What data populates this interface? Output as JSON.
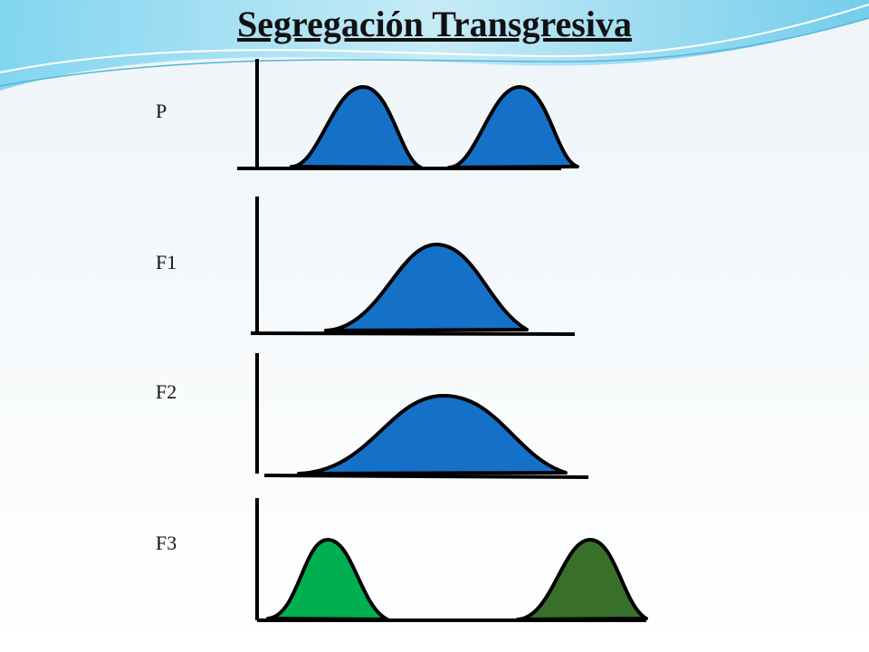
{
  "title": "Segregación Transgresiva",
  "rows": [
    {
      "label": "P"
    },
    {
      "label": "F1"
    },
    {
      "label": "F2"
    },
    {
      "label": "F3"
    }
  ]
}
